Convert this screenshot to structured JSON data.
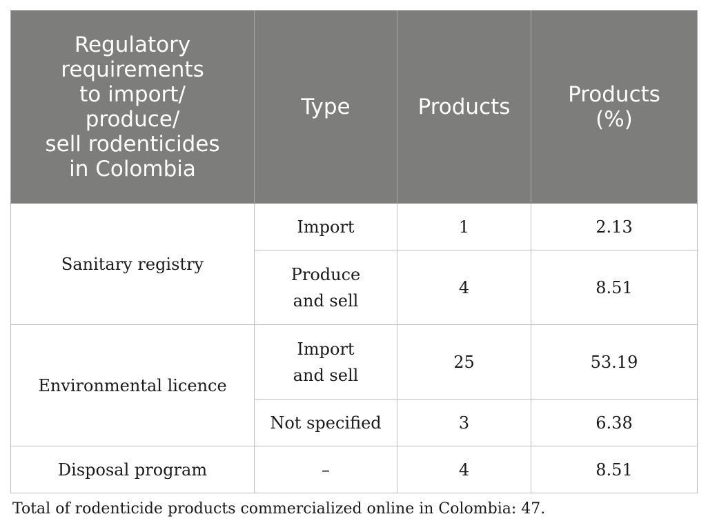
{
  "table": {
    "headers": [
      "Regulatory\nrequirements\nto import/\nproduce/\nsell rodenticides\nin Colombia",
      "Type",
      "Products",
      "Products\n(%)"
    ],
    "groups": [
      {
        "requirement": "Sanitary registry",
        "rows": [
          {
            "type": "Import",
            "products": "1",
            "percent": "2.13"
          },
          {
            "type": "Produce\nand sell",
            "products": "4",
            "percent": "8.51"
          }
        ]
      },
      {
        "requirement": "Environmental licence",
        "rows": [
          {
            "type": "Import\nand sell",
            "products": "25",
            "percent": "53.19"
          },
          {
            "type": "Not specified",
            "products": "3",
            "percent": "6.38"
          }
        ]
      },
      {
        "requirement": "Disposal program",
        "rows": [
          {
            "type": "–",
            "products": "4",
            "percent": "8.51"
          }
        ]
      }
    ]
  },
  "footnote": "Total of rodenticide products commercialized online in Colombia: 47."
}
